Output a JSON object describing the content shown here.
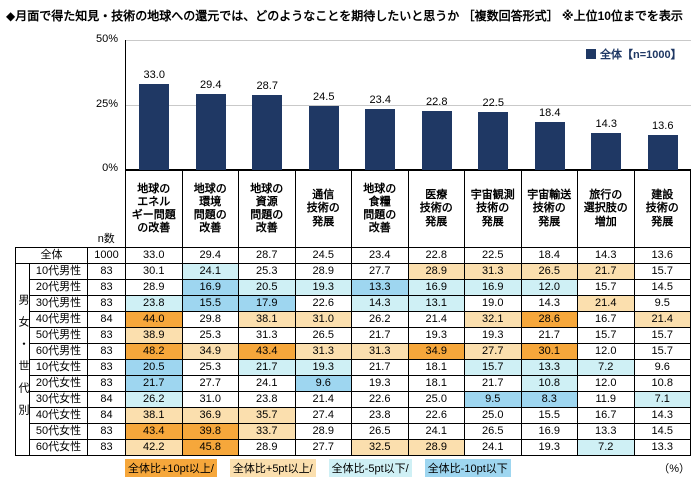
{
  "title": "◆月面で得た知見・技術の地球への還元では、どのようなことを期待したいと思うか ［複数回答形式］ ※上位10位までを表示",
  "chart_data": {
    "type": "bar",
    "title": "月面で得た知見・技術の地球への還元で期待したいこと",
    "categories": [
      "地球の\nエネル\nギー問題\nの改善",
      "地球の\n環境\n問題の\n改善",
      "地球の\n資源\n問題の\n改善",
      "通信\n技術の\n発展",
      "地球の\n食糧\n問題の\n改善",
      "医療\n技術の\n発展",
      "宇宙観測\n技術の\n発展",
      "宇宙輸送\n技術の\n発展",
      "旅行の\n選択肢の\n増加",
      "建設\n技術の\n発展"
    ],
    "values": [
      33.0,
      29.4,
      28.7,
      24.5,
      23.4,
      22.8,
      22.5,
      18.4,
      14.3,
      13.6
    ],
    "legend": "全体【n=1000】",
    "ylabel": "",
    "ylim": [
      0,
      50
    ],
    "yticks": [
      "50%",
      "25%",
      "0%"
    ],
    "grid": true,
    "legend_position": "top-right"
  },
  "table": {
    "n_header": "n数",
    "group_label": "男女・世代別",
    "overall": {
      "label": "全体",
      "n": "1000",
      "values": [
        33.0,
        29.4,
        28.7,
        24.5,
        23.4,
        22.8,
        22.5,
        18.4,
        14.3,
        13.6
      ]
    },
    "rows": [
      {
        "label": "10代男性",
        "n": "83",
        "values": [
          30.1,
          24.1,
          25.3,
          28.9,
          27.7,
          28.9,
          31.3,
          26.5,
          21.7,
          15.7
        ]
      },
      {
        "label": "20代男性",
        "n": "83",
        "values": [
          28.9,
          16.9,
          20.5,
          19.3,
          13.3,
          16.9,
          16.9,
          12.0,
          15.7,
          14.5
        ]
      },
      {
        "label": "30代男性",
        "n": "83",
        "values": [
          23.8,
          15.5,
          17.9,
          22.6,
          14.3,
          13.1,
          19.0,
          14.3,
          21.4,
          9.5
        ]
      },
      {
        "label": "40代男性",
        "n": "84",
        "values": [
          44.0,
          29.8,
          38.1,
          31.0,
          26.2,
          21.4,
          32.1,
          28.6,
          16.7,
          21.4
        ]
      },
      {
        "label": "50代男性",
        "n": "83",
        "values": [
          38.9,
          25.3,
          31.3,
          26.5,
          21.7,
          19.3,
          19.3,
          21.7,
          15.7,
          15.7
        ]
      },
      {
        "label": "60代男性",
        "n": "83",
        "values": [
          48.2,
          34.9,
          43.4,
          31.3,
          31.3,
          34.9,
          27.7,
          30.1,
          12.0,
          15.7
        ]
      },
      {
        "label": "10代女性",
        "n": "83",
        "values": [
          20.5,
          25.3,
          21.7,
          19.3,
          21.7,
          18.1,
          15.7,
          13.3,
          7.2,
          9.6
        ]
      },
      {
        "label": "20代女性",
        "n": "83",
        "values": [
          21.7,
          27.7,
          24.1,
          9.6,
          19.3,
          18.1,
          21.7,
          10.8,
          12.0,
          10.8
        ]
      },
      {
        "label": "30代女性",
        "n": "84",
        "values": [
          26.2,
          31.0,
          23.8,
          21.4,
          22.6,
          25.0,
          9.5,
          8.3,
          11.9,
          7.1
        ]
      },
      {
        "label": "40代女性",
        "n": "84",
        "values": [
          38.1,
          36.9,
          35.7,
          27.4,
          23.8,
          22.6,
          25.0,
          15.5,
          16.7,
          14.3
        ]
      },
      {
        "label": "50代女性",
        "n": "83",
        "values": [
          43.4,
          39.8,
          33.7,
          28.9,
          26.5,
          24.1,
          26.5,
          16.9,
          13.3,
          14.5
        ]
      },
      {
        "label": "60代女性",
        "n": "83",
        "values": [
          42.2,
          45.8,
          28.9,
          27.7,
          32.5,
          28.9,
          24.1,
          19.3,
          7.2,
          13.3
        ]
      }
    ]
  },
  "legend_footer": {
    "items": [
      {
        "label": "全体比+10pt以上/",
        "key": "plus10"
      },
      {
        "label": "全体比+5pt以上/",
        "key": "plus5"
      },
      {
        "label": "全体比-5pt以下/",
        "key": "minus5"
      },
      {
        "label": "全体比-10pt以下",
        "key": "minus10"
      }
    ],
    "unit": "（%）"
  },
  "colors": {
    "bar": "#1F3864",
    "legend_text": "#1F3864",
    "plus10": "#F6A73B",
    "plus5": "#FBDFAE",
    "minus5": "#CFF0F5",
    "minus10": "#9ED6F0",
    "grid": "#C9C9C9"
  }
}
